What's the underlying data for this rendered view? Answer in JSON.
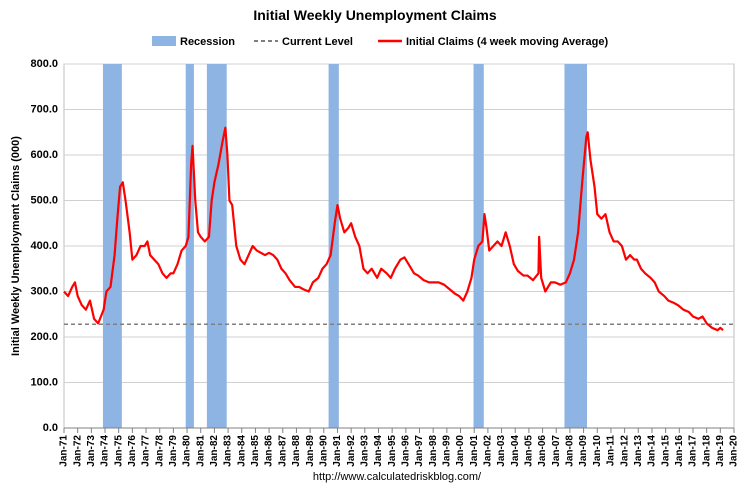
{
  "chart_data": {
    "type": "line",
    "title": "Initial Weekly Unemployment Claims",
    "y_label": "Initial Weekly Unemployment Claims (000)",
    "source": "http://www.calculatedriskblog.com/",
    "grid": true,
    "xlim": [
      1971,
      2020
    ],
    "ylim": [
      0,
      800
    ],
    "yticks": [
      {
        "value": 0,
        "label": "0.0"
      },
      {
        "value": 100,
        "label": "100.0"
      },
      {
        "value": 200,
        "label": "200.0"
      },
      {
        "value": 300,
        "label": "300.0"
      },
      {
        "value": 400,
        "label": "400.0"
      },
      {
        "value": 500,
        "label": "500.0"
      },
      {
        "value": 600,
        "label": "600.0"
      },
      {
        "value": 700,
        "label": "700.0"
      },
      {
        "value": 800,
        "label": "800.0"
      }
    ],
    "xticks": [
      {
        "value": 1971,
        "label": "Jan-71"
      },
      {
        "value": 1972,
        "label": "Jan-72"
      },
      {
        "value": 1973,
        "label": "Jan-73"
      },
      {
        "value": 1974,
        "label": "Jan-74"
      },
      {
        "value": 1975,
        "label": "Jan-75"
      },
      {
        "value": 1976,
        "label": "Jan-76"
      },
      {
        "value": 1977,
        "label": "Jan-77"
      },
      {
        "value": 1978,
        "label": "Jan-78"
      },
      {
        "value": 1979,
        "label": "Jan-79"
      },
      {
        "value": 1980,
        "label": "Jan-80"
      },
      {
        "value": 1981,
        "label": "Jan-81"
      },
      {
        "value": 1982,
        "label": "Jan-82"
      },
      {
        "value": 1983,
        "label": "Jan-83"
      },
      {
        "value": 1984,
        "label": "Jan-84"
      },
      {
        "value": 1985,
        "label": "Jan-85"
      },
      {
        "value": 1986,
        "label": "Jan-86"
      },
      {
        "value": 1987,
        "label": "Jan-87"
      },
      {
        "value": 1988,
        "label": "Jan-88"
      },
      {
        "value": 1989,
        "label": "Jan-89"
      },
      {
        "value": 1990,
        "label": "Jan-90"
      },
      {
        "value": 1991,
        "label": "Jan-91"
      },
      {
        "value": 1992,
        "label": "Jan-92"
      },
      {
        "value": 1993,
        "label": "Jan-93"
      },
      {
        "value": 1994,
        "label": "Jan-94"
      },
      {
        "value": 1995,
        "label": "Jan-95"
      },
      {
        "value": 1996,
        "label": "Jan-96"
      },
      {
        "value": 1997,
        "label": "Jan-97"
      },
      {
        "value": 1998,
        "label": "Jan-98"
      },
      {
        "value": 1999,
        "label": "Jan-99"
      },
      {
        "value": 2000,
        "label": "Jan-00"
      },
      {
        "value": 2001,
        "label": "Jan-01"
      },
      {
        "value": 2002,
        "label": "Jan-02"
      },
      {
        "value": 2003,
        "label": "Jan-03"
      },
      {
        "value": 2004,
        "label": "Jan-04"
      },
      {
        "value": 2005,
        "label": "Jan-05"
      },
      {
        "value": 2006,
        "label": "Jan-06"
      },
      {
        "value": 2007,
        "label": "Jan-07"
      },
      {
        "value": 2008,
        "label": "Jan-08"
      },
      {
        "value": 2009,
        "label": "Jan-09"
      },
      {
        "value": 2010,
        "label": "Jan-10"
      },
      {
        "value": 2011,
        "label": "Jan-11"
      },
      {
        "value": 2012,
        "label": "Jan-12"
      },
      {
        "value": 2013,
        "label": "Jan-13"
      },
      {
        "value": 2014,
        "label": "Jan-14"
      },
      {
        "value": 2015,
        "label": "Jan-15"
      },
      {
        "value": 2016,
        "label": "Jan-16"
      },
      {
        "value": 2017,
        "label": "Jan-17"
      },
      {
        "value": 2018,
        "label": "Jan-18"
      },
      {
        "value": 2019,
        "label": "Jan-19"
      },
      {
        "value": 2020,
        "label": "Jan-20"
      }
    ],
    "recessions": {
      "name": "Recession",
      "color": "#8db4e2",
      "ranges": [
        [
          1973.85,
          1975.23
        ],
        [
          1979.9,
          1980.5
        ],
        [
          1981.45,
          1982.9
        ],
        [
          1990.35,
          1991.1
        ],
        [
          2000.95,
          2001.7
        ],
        [
          2007.6,
          2009.25
        ]
      ]
    },
    "reference_line": {
      "name": "Current Level",
      "value": 228,
      "color": "#7f7f7f"
    },
    "series": [
      {
        "name": "Initial Claims (4 week moving Average)",
        "color": "#ff0000",
        "x": [
          1971.0,
          1971.3,
          1971.6,
          1971.8,
          1972.0,
          1972.3,
          1972.6,
          1972.9,
          1973.2,
          1973.5,
          1973.7,
          1973.9,
          1974.1,
          1974.4,
          1974.7,
          1974.9,
          1975.1,
          1975.3,
          1975.5,
          1975.8,
          1976.0,
          1976.3,
          1976.6,
          1976.9,
          1977.1,
          1977.3,
          1977.6,
          1977.9,
          1978.2,
          1978.5,
          1978.8,
          1979.0,
          1979.3,
          1979.6,
          1979.9,
          1980.1,
          1980.3,
          1980.4,
          1980.6,
          1980.8,
          1981.0,
          1981.3,
          1981.6,
          1981.8,
          1982.0,
          1982.3,
          1982.6,
          1982.8,
          1982.95,
          1983.1,
          1983.3,
          1983.6,
          1983.9,
          1984.2,
          1984.5,
          1984.8,
          1985.1,
          1985.4,
          1985.7,
          1986.0,
          1986.3,
          1986.6,
          1986.9,
          1987.2,
          1987.5,
          1987.9,
          1988.2,
          1988.5,
          1988.9,
          1989.2,
          1989.6,
          1989.9,
          1990.2,
          1990.5,
          1990.8,
          1991.0,
          1991.2,
          1991.5,
          1991.8,
          1992.0,
          1992.3,
          1992.6,
          1992.9,
          1993.2,
          1993.5,
          1993.9,
          1994.2,
          1994.6,
          1994.9,
          1995.2,
          1995.6,
          1995.9,
          1996.2,
          1996.6,
          1996.9,
          1997.3,
          1997.7,
          1998.0,
          1998.4,
          1998.8,
          1999.2,
          1999.6,
          1999.9,
          2000.2,
          2000.5,
          2000.8,
          2001.0,
          2001.3,
          2001.6,
          2001.75,
          2001.9,
          2002.1,
          2002.4,
          2002.7,
          2003.0,
          2003.3,
          2003.6,
          2003.9,
          2004.2,
          2004.6,
          2004.9,
          2005.3,
          2005.7,
          2005.75,
          2005.9,
          2006.2,
          2006.6,
          2006.9,
          2007.3,
          2007.7,
          2008.0,
          2008.3,
          2008.6,
          2008.9,
          2009.2,
          2009.3,
          2009.5,
          2009.8,
          2010.0,
          2010.3,
          2010.6,
          2010.9,
          2011.2,
          2011.5,
          2011.8,
          2012.1,
          2012.4,
          2012.7,
          2012.9,
          2013.2,
          2013.5,
          2013.9,
          2014.2,
          2014.5,
          2014.9,
          2015.2,
          2015.6,
          2015.9,
          2016.3,
          2016.7,
          2017.0,
          2017.4,
          2017.7,
          2018.0,
          2018.4,
          2018.8,
          2019.0,
          2019.2
        ],
        "values": [
          300,
          290,
          310,
          320,
          290,
          270,
          260,
          280,
          240,
          230,
          245,
          260,
          300,
          310,
          380,
          460,
          530,
          540,
          500,
          430,
          370,
          380,
          400,
          400,
          410,
          380,
          370,
          360,
          340,
          330,
          340,
          340,
          360,
          390,
          400,
          420,
          580,
          620,
          500,
          430,
          420,
          410,
          420,
          500,
          540,
          580,
          630,
          660,
          600,
          500,
          490,
          400,
          370,
          360,
          380,
          400,
          390,
          385,
          380,
          385,
          380,
          370,
          350,
          340,
          325,
          310,
          310,
          305,
          300,
          320,
          330,
          350,
          360,
          380,
          450,
          490,
          460,
          430,
          440,
          450,
          420,
          400,
          350,
          340,
          350,
          330,
          350,
          340,
          330,
          350,
          370,
          375,
          360,
          340,
          335,
          325,
          320,
          320,
          320,
          315,
          305,
          295,
          290,
          280,
          300,
          330,
          370,
          400,
          410,
          470,
          440,
          390,
          400,
          410,
          400,
          430,
          400,
          360,
          345,
          335,
          335,
          325,
          340,
          420,
          330,
          300,
          320,
          320,
          315,
          320,
          340,
          370,
          430,
          540,
          640,
          650,
          590,
          530,
          470,
          460,
          470,
          430,
          410,
          410,
          400,
          370,
          380,
          370,
          370,
          350,
          340,
          330,
          320,
          300,
          290,
          280,
          275,
          270,
          260,
          255,
          245,
          240,
          245,
          230,
          220,
          215,
          220,
          215
        ]
      }
    ]
  }
}
